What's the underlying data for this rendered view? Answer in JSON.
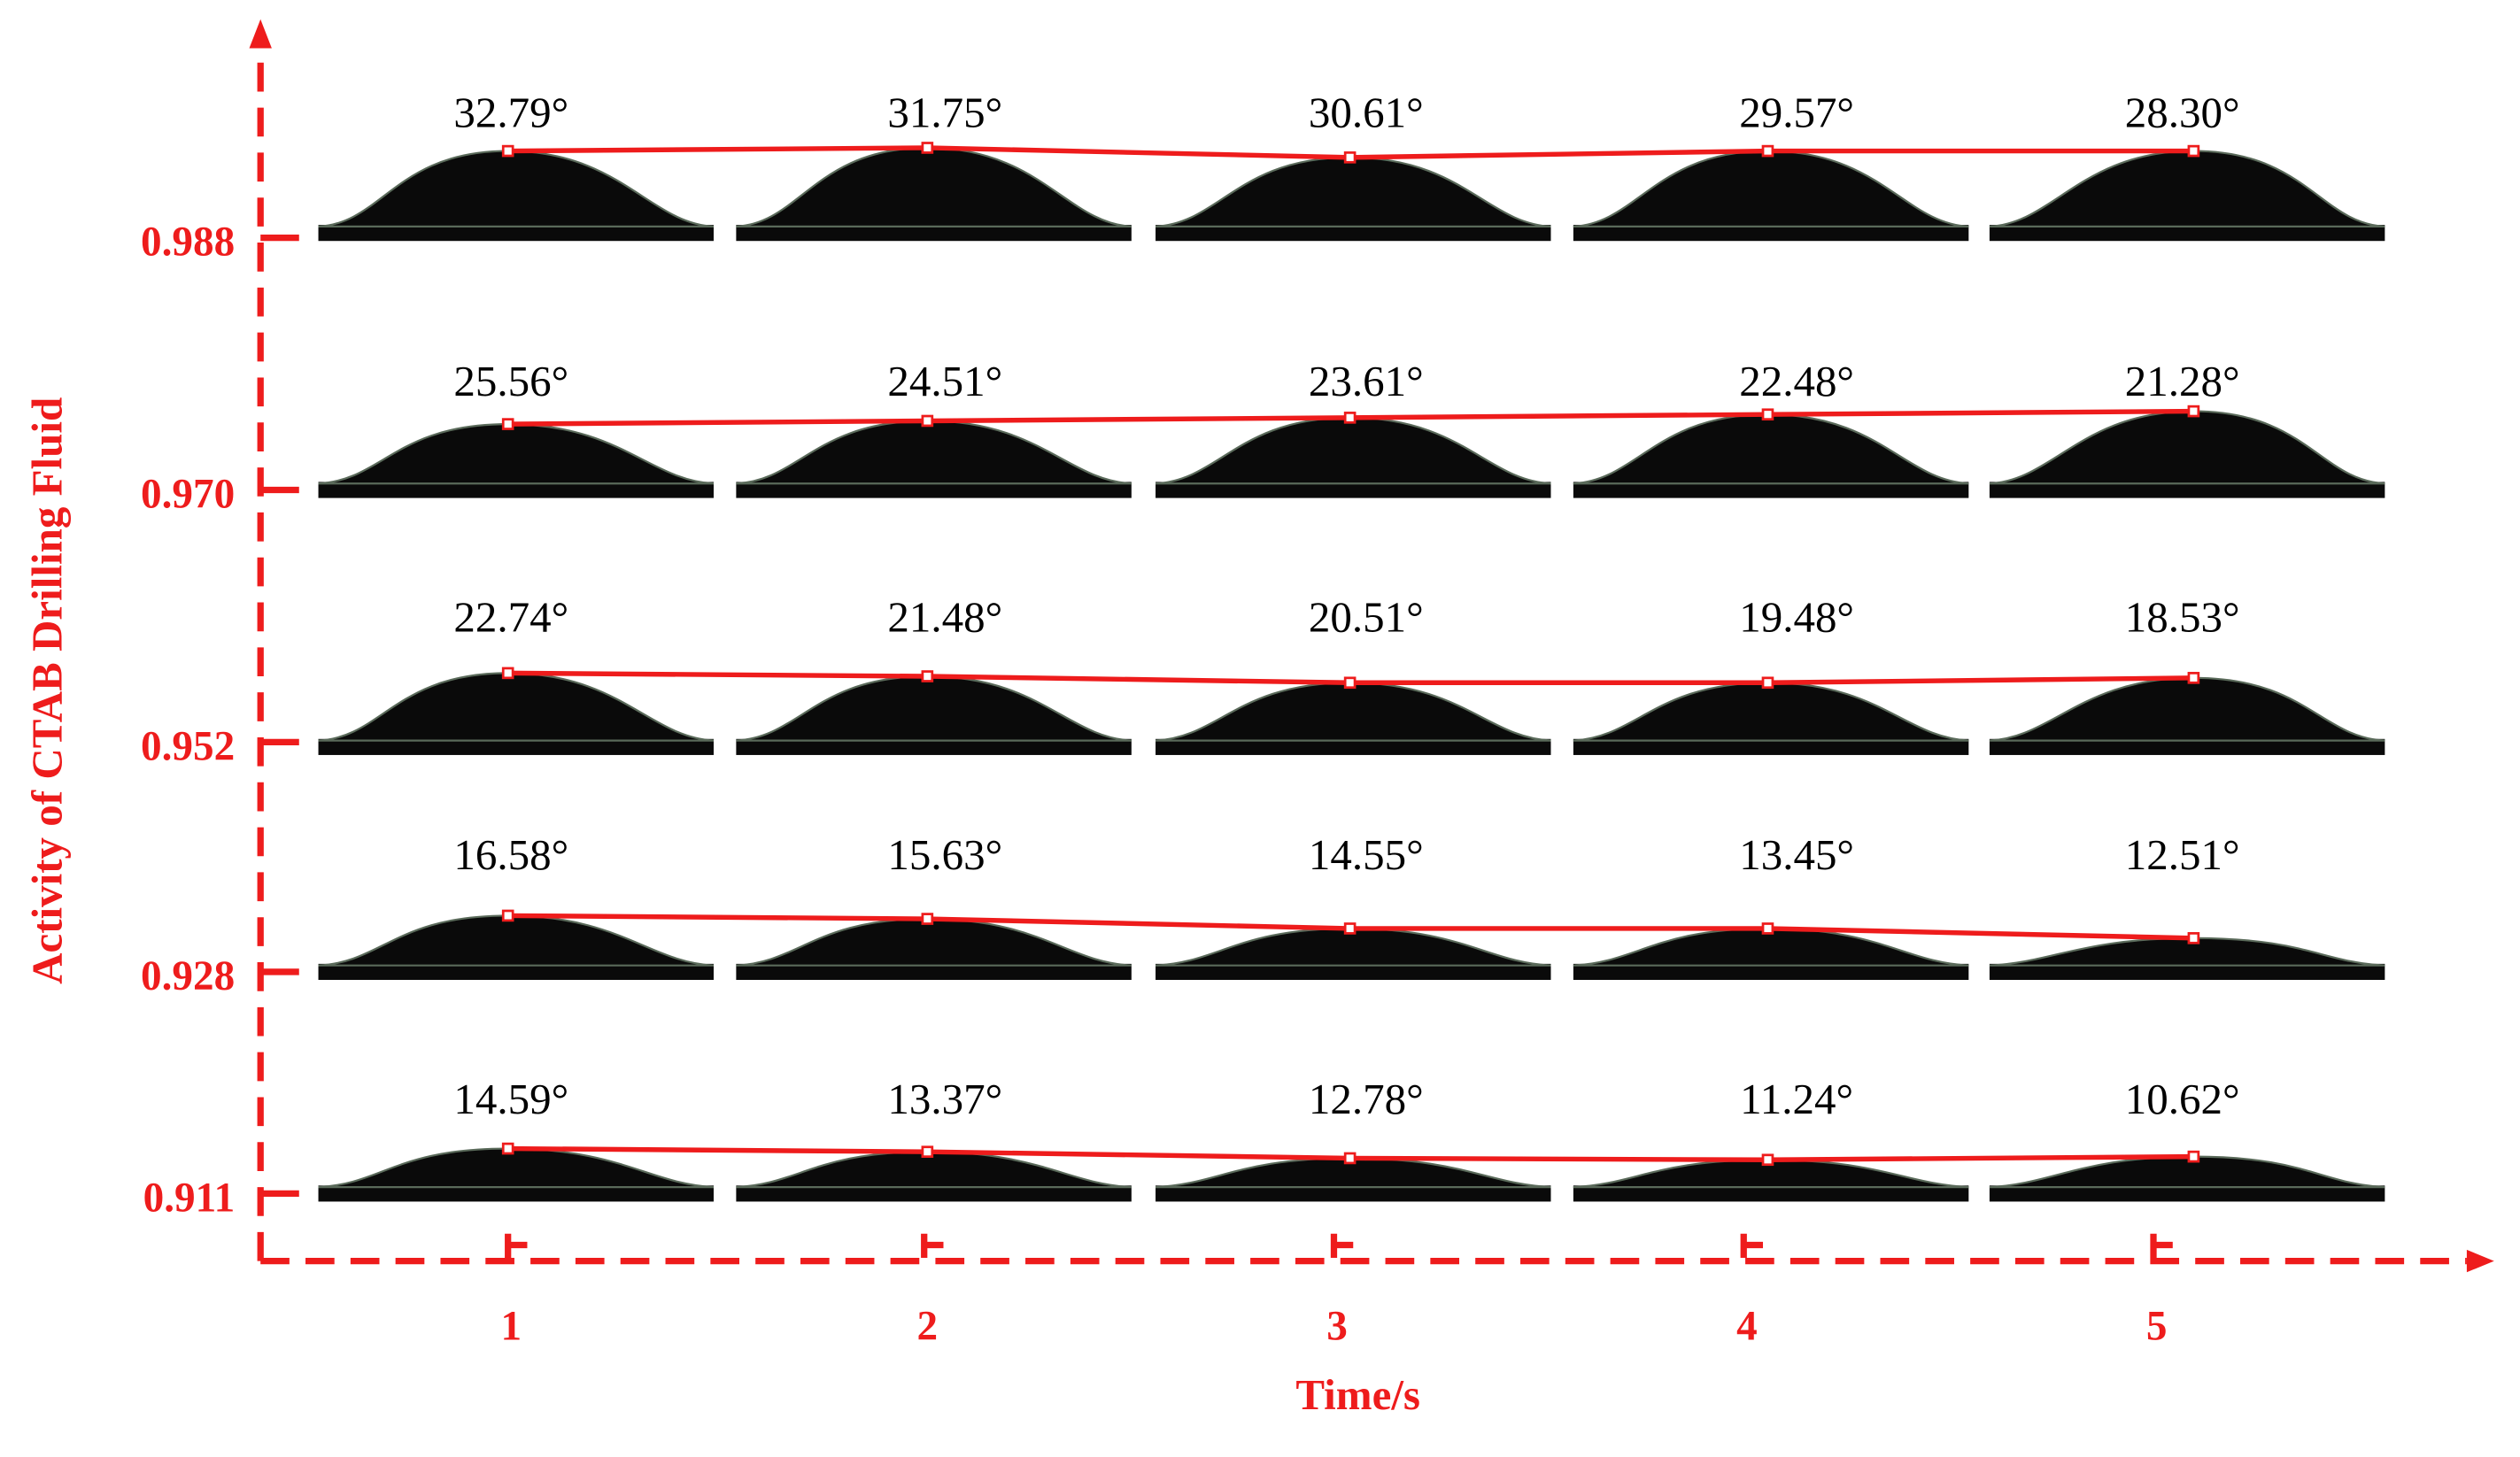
{
  "y_axis": {
    "title": "Activity of CTAB Drilling Fluid",
    "ticks": [
      "0.988",
      "0.970",
      "0.952",
      "0.928",
      "0.911"
    ]
  },
  "x_axis": {
    "title": "Time/s",
    "ticks": [
      "1",
      "2",
      "3",
      "4",
      "5"
    ]
  },
  "rows": [
    {
      "angles": [
        "32.79°",
        "31.75°",
        "30.61°",
        "29.57°",
        "28.30°"
      ]
    },
    {
      "angles": [
        "25.56°",
        "24.51°",
        "23.61°",
        "22.48°",
        "21.28°"
      ]
    },
    {
      "angles": [
        "22.74°",
        "21.48°",
        "20.51°",
        "19.48°",
        "18.53°"
      ]
    },
    {
      "angles": [
        "16.58°",
        "15.63°",
        "14.55°",
        "13.45°",
        "12.51°"
      ]
    },
    {
      "angles": [
        "14.59°",
        "13.37°",
        "12.78°",
        "11.24°",
        "10.62°"
      ]
    }
  ]
}
